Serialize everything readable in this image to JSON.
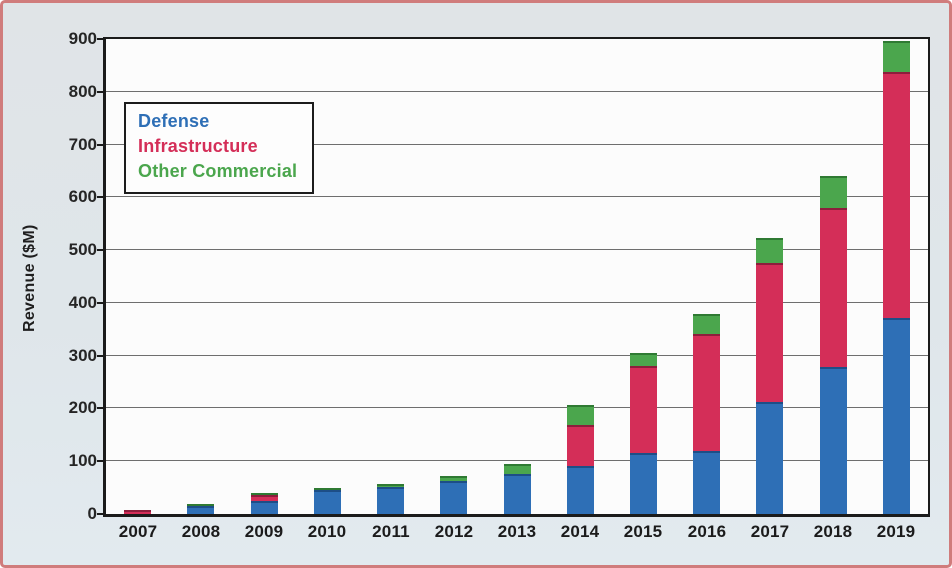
{
  "frame": {
    "background_color": "#e0e6ea",
    "border_color": "#d07c7c",
    "plot_background": "#fcfcfc",
    "gridline_color": "#6e6e6e"
  },
  "chart_data": {
    "type": "bar",
    "stacked": true,
    "title": "",
    "xlabel": "",
    "ylabel": "Revenue ($M)",
    "ylim": [
      0,
      900
    ],
    "ytick_step": 100,
    "grid": true,
    "legend_position": "upper-left",
    "categories": [
      "2007",
      "2008",
      "2009",
      "2010",
      "2011",
      "2012",
      "2013",
      "2014",
      "2015",
      "2016",
      "2017",
      "2018",
      "2019"
    ],
    "series": [
      {
        "name": "Defense",
        "color": "#2e6fb6",
        "edge_color": "#1d4e87",
        "values": [
          0,
          16,
          25,
          46,
          51,
          62,
          76,
          91,
          115,
          120,
          212,
          279,
          371
        ]
      },
      {
        "name": "Infrastructure",
        "color": "#d42e58",
        "edge_color": "#8d1e3c",
        "values": [
          8,
          0,
          12,
          0,
          0,
          0,
          0,
          77,
          165,
          221,
          263,
          301,
          467
        ]
      },
      {
        "name": "Other Commercial",
        "color": "#4ba64d",
        "edge_color": "#2f7a33",
        "values": [
          0,
          4,
          3,
          4,
          6,
          10,
          19,
          37,
          25,
          37,
          48,
          60,
          58
        ]
      }
    ],
    "totals": [
      8,
      20,
      40,
      50,
      57,
      72,
      95,
      205,
      305,
      378,
      523,
      640,
      896
    ]
  }
}
